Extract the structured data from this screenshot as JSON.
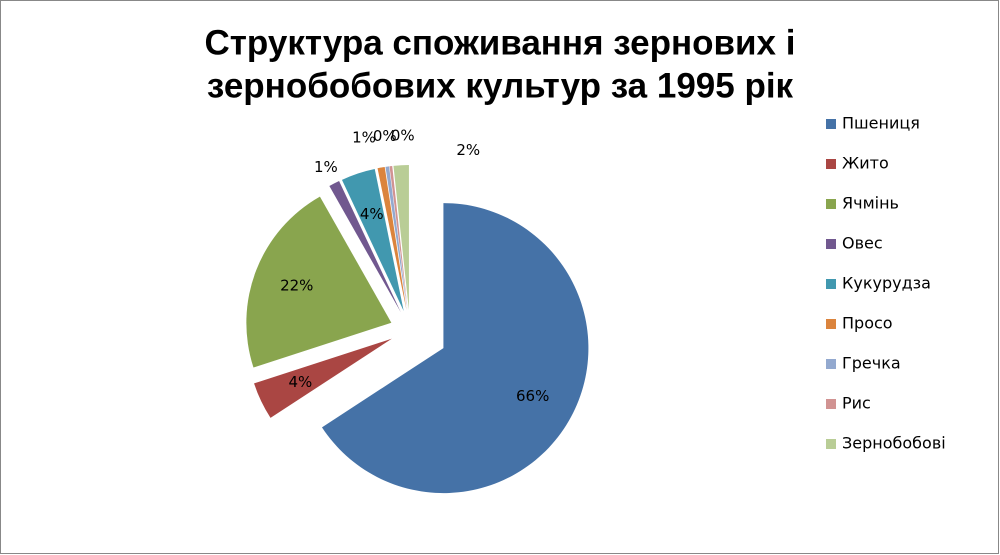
{
  "chart_data": {
    "type": "pie",
    "title": [
      "Структура споживання зернових і",
      "зернобобових культур за 1995 рік"
    ],
    "categories": [
      "Пшениця",
      "Жито",
      "Ячмінь",
      "Овес",
      "Кукурудза",
      "Просо",
      "Гречка",
      "Рис",
      "Зернобобові"
    ],
    "values": [
      65.8,
      4.2,
      21.8,
      1.2,
      3.8,
      0.8,
      0.4,
      0.3,
      1.7
    ],
    "value_labels": [
      "66%",
      "4%",
      "22%",
      "1%",
      "4%",
      "1%",
      "0%",
      "0%",
      "2%"
    ],
    "colors": [
      "#4572a7",
      "#aa4643",
      "#89a54e",
      "#71588f",
      "#4198af",
      "#db843d",
      "#93a9cf",
      "#d19392",
      "#b9cd96"
    ],
    "legend": "right"
  }
}
